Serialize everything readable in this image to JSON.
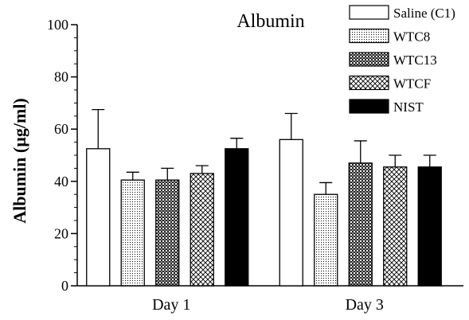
{
  "chart_data": {
    "type": "bar",
    "title": "Albumin",
    "ylabel": "Albumin (µg/ml)",
    "xlabel": "",
    "ylim": [
      0,
      100
    ],
    "yticks": [
      0,
      20,
      40,
      60,
      80,
      100
    ],
    "y_minor_step": 5,
    "categories": [
      "Day 1",
      "Day 3"
    ],
    "grid": false,
    "legend_position": "top-right",
    "series": [
      {
        "name": "Saline (C1)",
        "pattern": "open",
        "values": [
          52.5,
          56
        ],
        "errors": [
          15,
          10
        ]
      },
      {
        "name": "WTC8",
        "pattern": "dotted",
        "values": [
          40.5,
          35
        ],
        "errors": [
          3,
          4.5
        ]
      },
      {
        "name": "WTC13",
        "pattern": "checker",
        "values": [
          40.5,
          47
        ],
        "errors": [
          4.5,
          8.5
        ]
      },
      {
        "name": "WTCF",
        "pattern": "crosshatch",
        "values": [
          43,
          45.5
        ],
        "errors": [
          3,
          4.5
        ]
      },
      {
        "name": "NIST",
        "pattern": "solid",
        "values": [
          52.5,
          45.5
        ],
        "errors": [
          4,
          4.5
        ]
      }
    ]
  }
}
